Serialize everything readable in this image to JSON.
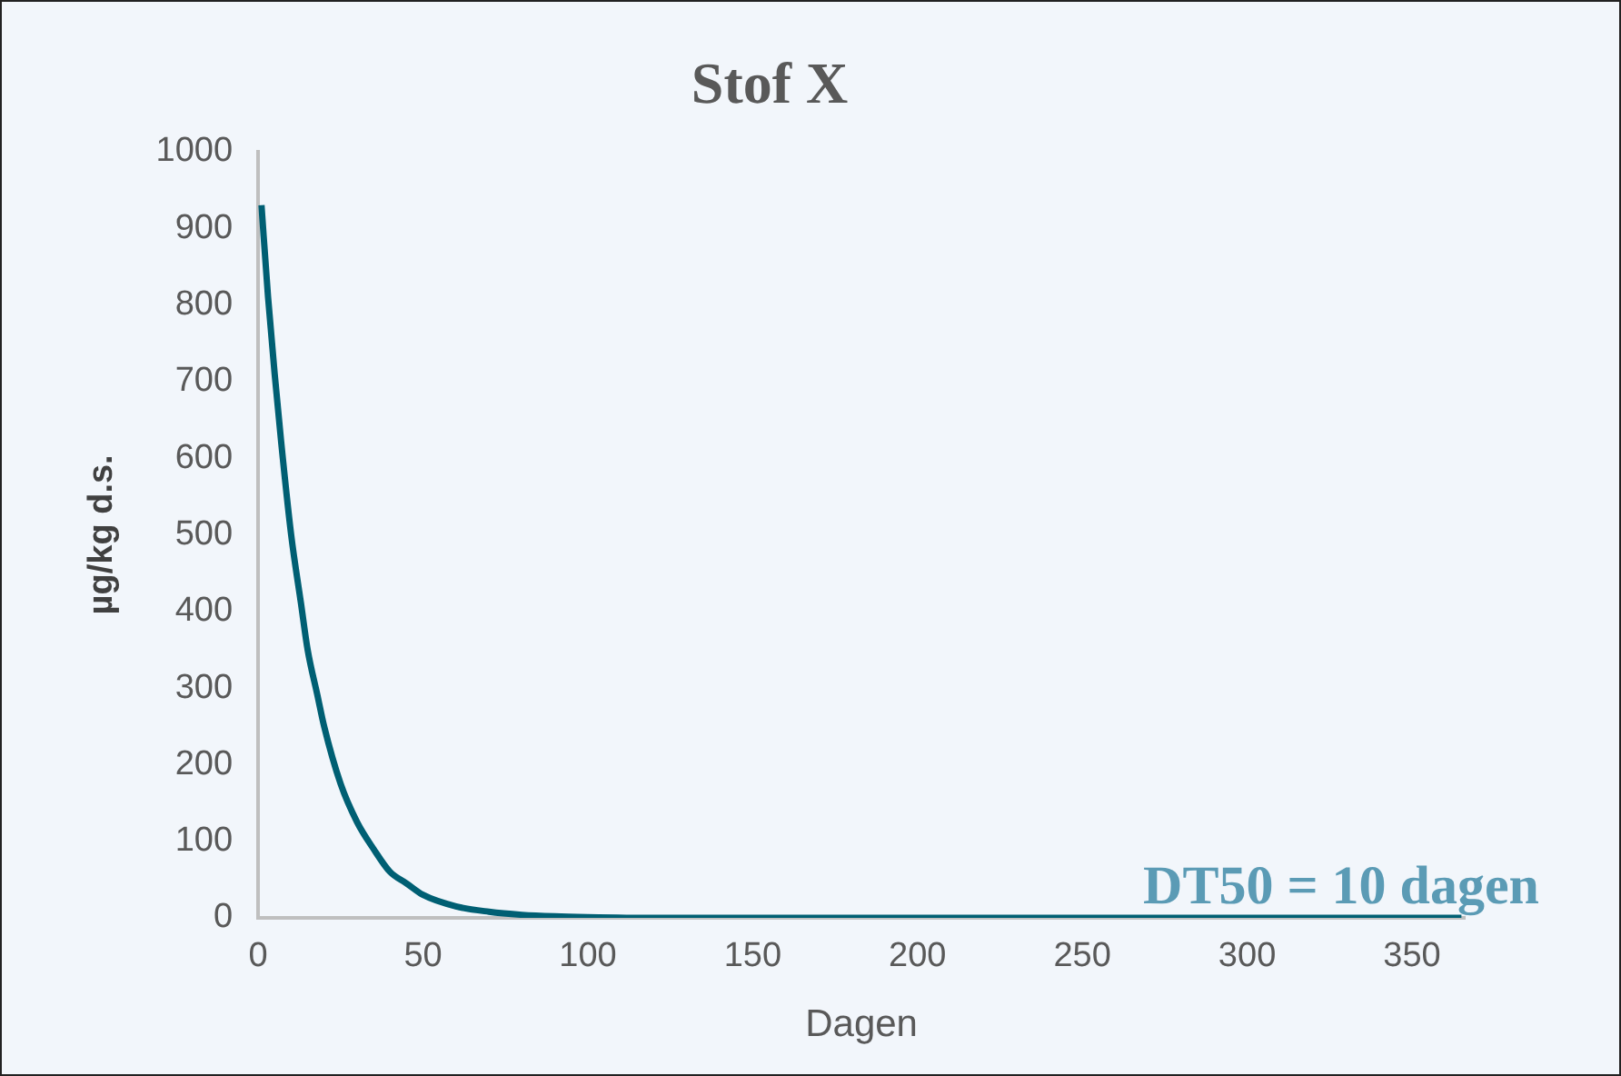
{
  "chart_data": {
    "type": "line",
    "title": "Stof X",
    "xlabel": "Dagen",
    "ylabel": "µg/kg d.s.",
    "x": [
      1,
      3,
      5,
      7,
      10,
      13,
      15,
      18,
      20,
      25,
      30,
      35,
      40,
      45,
      50,
      60,
      70,
      80,
      90,
      100,
      120,
      150,
      200,
      250,
      300,
      365
    ],
    "series": [
      {
        "color": "#005f73",
        "values": [
          930,
          810,
          710,
          620,
          500,
          410,
          350,
          290,
          250,
          175,
          125,
          90,
          60,
          45,
          30,
          15,
          8,
          4,
          2,
          1,
          0,
          0,
          0,
          0,
          0,
          0
        ]
      }
    ],
    "xlim": [
      0,
      366
    ],
    "xticks": [
      0,
      50,
      100,
      150,
      200,
      250,
      300,
      350
    ],
    "ylim": [
      0,
      1000
    ],
    "yticks": [
      0,
      100,
      200,
      300,
      400,
      500,
      600,
      700,
      800,
      900,
      1000
    ],
    "grid": false,
    "legend": false,
    "marker": "none",
    "line_style": "solid",
    "annotations": [
      "DT50 = 10 dagen"
    ]
  }
}
